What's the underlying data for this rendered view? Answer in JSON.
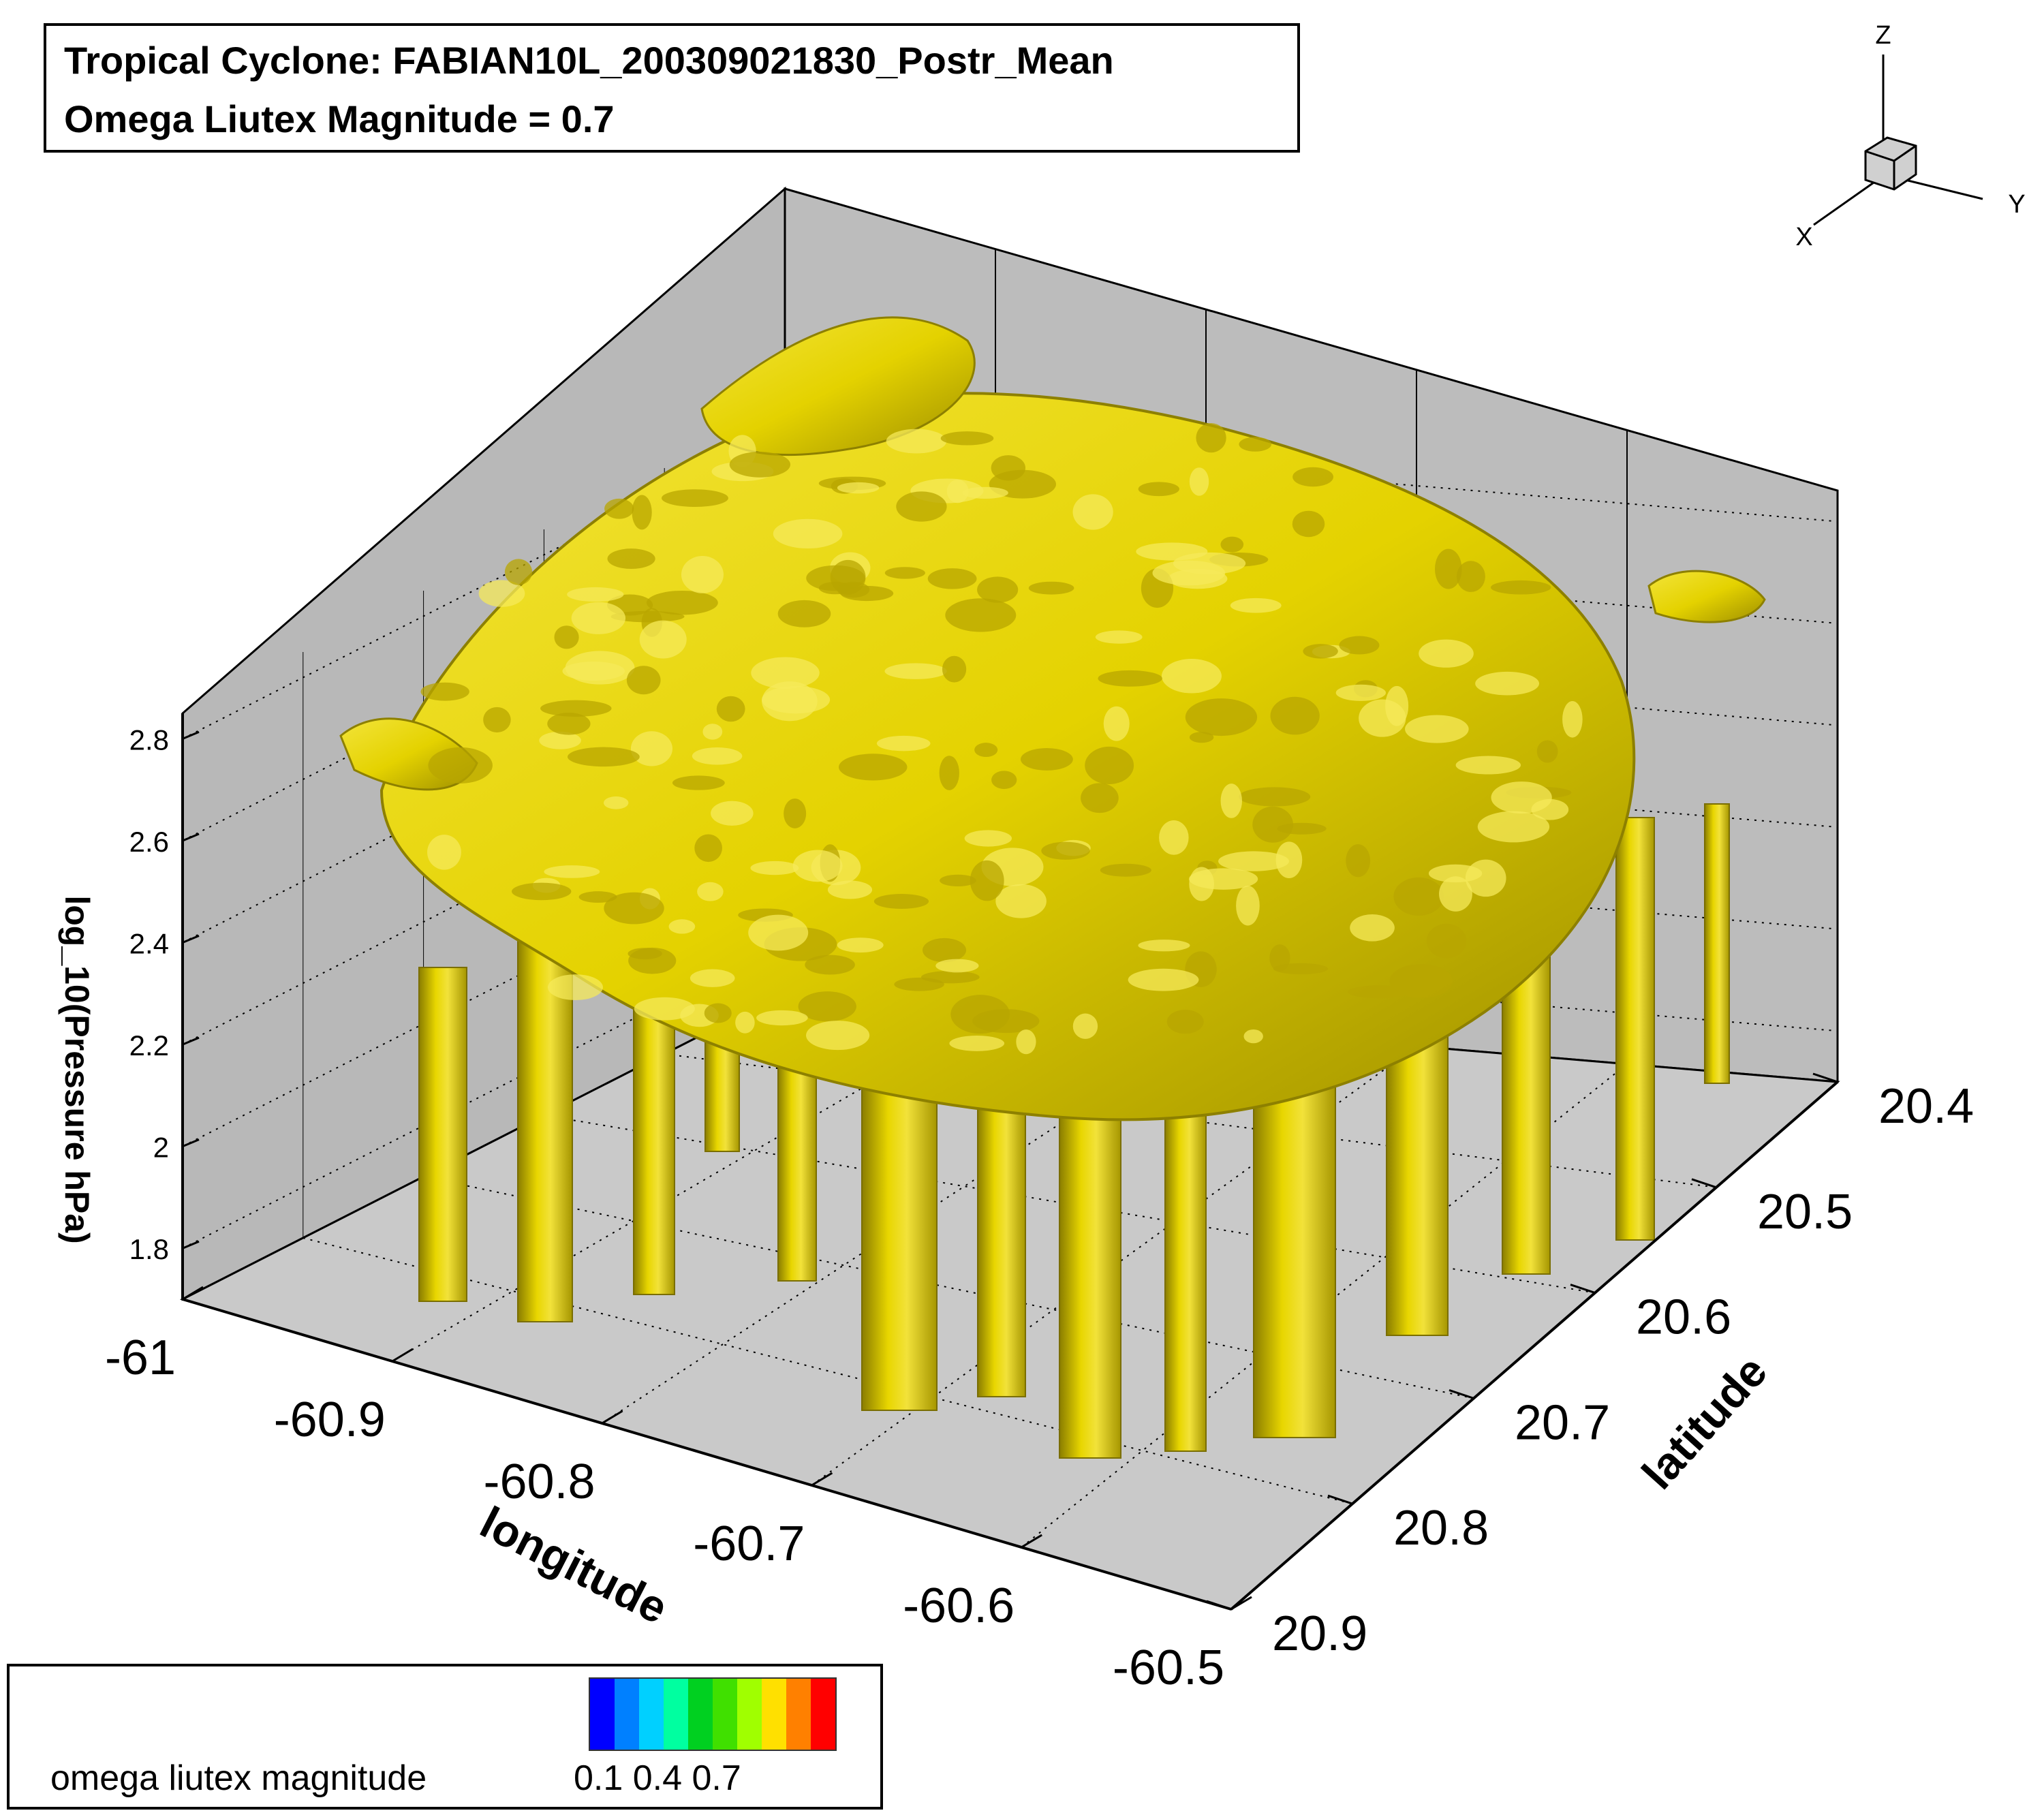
{
  "title": {
    "line1": "Tropical Cyclone: FABIAN10L_200309021830_Postr_Mean",
    "line2": "Omega Liutex Magnitude = 0.7"
  },
  "chart_data": {
    "type": "3d-isosurface",
    "iso_level": 0.7,
    "isosurface_color": "#e6d500",
    "x_axis": {
      "label": "longitude",
      "ticks": [
        "-61",
        "-60.9",
        "-60.8",
        "-60.7",
        "-60.6",
        "-60.5"
      ],
      "range": [
        -61,
        -60.5
      ]
    },
    "y_axis": {
      "label": "latitude",
      "ticks": [
        "20.9",
        "20.8",
        "20.7",
        "20.6",
        "20.5",
        "20.4"
      ],
      "range": [
        20.9,
        20.4
      ]
    },
    "z_axis": {
      "label": "log_10(Pressure hPa)",
      "ticks": [
        "1.8",
        "2",
        "2.2",
        "2.4",
        "2.6",
        "2.8"
      ],
      "range": [
        1.7,
        2.85
      ]
    },
    "orientation_axes": {
      "x": "X",
      "y": "Y",
      "z": "Z"
    }
  },
  "legend": {
    "label": "omega liutex magnitude",
    "ticks": "0.1 0.4 0.7",
    "colors": [
      "#0000ff",
      "#0080ff",
      "#00d0ff",
      "#00ffa0",
      "#00d020",
      "#40e000",
      "#a0ff00",
      "#ffe000",
      "#ff8000",
      "#ff0000"
    ]
  },
  "colors": {
    "wall": "#b8b8b8",
    "floor": "#c8c8c8",
    "grid": "#000000"
  }
}
